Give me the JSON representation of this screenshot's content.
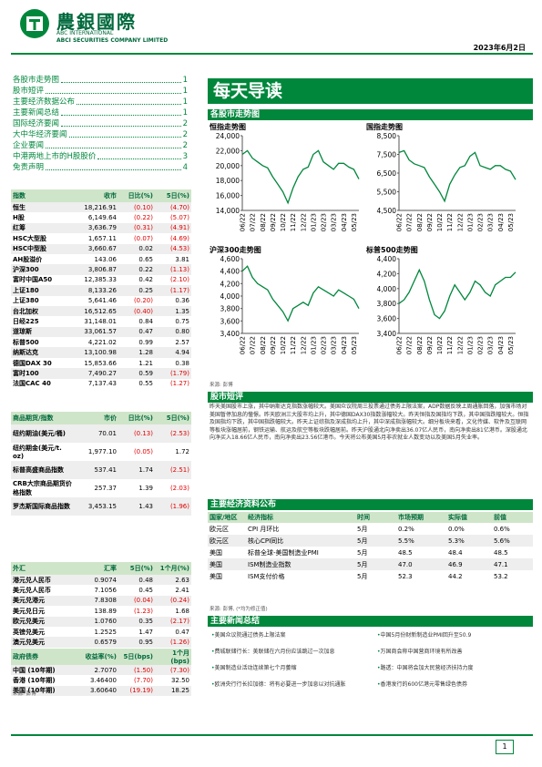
{
  "header": {
    "company_cn": "農銀國際",
    "company_en1": "ABC INTERNATIONAL",
    "company_en2": "ABCI SECURITIES COMPANY LIMITED",
    "date": "2023年6月2日"
  },
  "toc": [
    {
      "title": "各股市走势图",
      "page": "1"
    },
    {
      "title": "股市短评",
      "page": "1"
    },
    {
      "title": "主要经济数据公布",
      "page": "1"
    },
    {
      "title": "主要新闻总结",
      "page": "1"
    },
    {
      "title": "国际经济要闻",
      "page": "2"
    },
    {
      "title": "大中华经济要闻",
      "page": "2"
    },
    {
      "title": "企业要闻",
      "page": "2"
    },
    {
      "title": "中港两地上市的H股股价",
      "page": "3"
    },
    {
      "title": "免责声明",
      "page": "4"
    }
  ],
  "index_table": {
    "headers": [
      "指数",
      "收市",
      "日比(%)",
      "5日(%)"
    ],
    "rows": [
      [
        "恒生",
        "18,216.91",
        "(0.10)",
        "(4.70)"
      ],
      [
        "H股",
        "6,149.64",
        "(0.22)",
        "(5.07)"
      ],
      [
        "红筹",
        "3,636.79",
        "(0.31)",
        "(4.91)"
      ],
      [
        "HSC大型股",
        "1,657.11",
        "(0.07)",
        "(4.69)"
      ],
      [
        "HSC中型股",
        "3,660.67",
        "0.02",
        "(4.53)"
      ],
      [
        "AH股溢价",
        "143.06",
        "0.65",
        "3.81"
      ],
      [
        "沪深300",
        "3,806.87",
        "0.22",
        "(1.13)"
      ],
      [
        "富时中国A50",
        "12,385.33",
        "0.42",
        "(2.10)"
      ],
      [
        "上证180",
        "8,133.26",
        "0.25",
        "(1.17)"
      ],
      [
        "上证380",
        "5,641.46",
        "(0.20)",
        "0.36"
      ],
      [
        "台北加权",
        "16,512.65",
        "(0.40)",
        "1.35"
      ],
      [
        "日经225",
        "31,148.01",
        "0.84",
        "0.75"
      ],
      [
        "道琼斯",
        "33,061.57",
        "0.47",
        "0.80"
      ],
      [
        "标普500",
        "4,221.02",
        "0.99",
        "2.57"
      ],
      [
        "纳斯达克",
        "13,100.98",
        "1.28",
        "4.94"
      ],
      [
        "德国DAX 30",
        "15,853.66",
        "1.21",
        "0.38"
      ],
      [
        "富时100",
        "7,490.27",
        "0.59",
        "(1.79)"
      ],
      [
        "法国CAC 40",
        "7,137.43",
        "0.55",
        "(1.27)"
      ]
    ]
  },
  "commodity_table": {
    "headers": [
      "商品期货/指数",
      "市价",
      "日比(%)",
      "5日(%)"
    ],
    "rows": [
      [
        "纽约期油(美元/桶)",
        "70.01",
        "(0.13)",
        "(2.53)"
      ],
      [
        "纽约期金(美元/t. oz)",
        "1,977.10",
        "(0.05)",
        "1.72"
      ],
      [
        "标普高盛商品指数",
        "537.41",
        "1.74",
        "(2.51)"
      ],
      [
        "CRB大宗商品期货价格指数",
        "257.37",
        "1.39",
        "(2.03)"
      ],
      [
        "罗杰斯国际商品指数",
        "3,453.15",
        "1.43",
        "(1.96)"
      ]
    ]
  },
  "fx_table": {
    "headers": [
      "外汇",
      "汇率",
      "5日(%)",
      "1个月(%)"
    ],
    "rows": [
      [
        "港元兑人民币",
        "0.9074",
        "0.48",
        "2.63"
      ],
      [
        "美元兑人民币",
        "7.1056",
        "0.45",
        "2.41"
      ],
      [
        "美元兑港元",
        "7.8308",
        "(0.04)",
        "(0.24)"
      ],
      [
        "美元兑日元",
        "138.89",
        "(1.23)",
        "1.68"
      ],
      [
        "欧元兑美元",
        "1.0760",
        "0.35",
        "(2.17)"
      ],
      [
        "英镑兑美元",
        "1.2525",
        "1.47",
        "0.47"
      ],
      [
        "澳元兑美元",
        "0.6579",
        "0.95",
        "(1.26)"
      ]
    ]
  },
  "bond_table": {
    "headers": [
      "政府债券",
      "收益率(%)",
      "5日(bps)",
      "1个月(bps)"
    ],
    "rows": [
      [
        "中国 (10年期)",
        "2.7070",
        "(1.50)",
        "(7.30)"
      ],
      [
        "香港 (10年期)",
        "3.46400",
        "(7.70)",
        "32.50"
      ],
      [
        "美国 (10年期)",
        "3.60640",
        "(19.19)",
        "18.25"
      ]
    ]
  },
  "table_source": "来源: 彭博",
  "banner": "每天导读",
  "charts_heading": "各股市走势图",
  "chart_data": [
    {
      "type": "line",
      "title": "恒指走势图",
      "color": "#00873c",
      "categories": [
        "06/22",
        null,
        "07/22",
        null,
        "08/22",
        null,
        "09/22",
        null,
        "10/22",
        null,
        "11/22",
        null,
        "12/22",
        null,
        "01/23",
        null,
        "02/23",
        null,
        "03/23",
        null,
        "04/23",
        null,
        "05/23",
        null
      ],
      "values": [
        21500,
        22000,
        21000,
        20500,
        20000,
        19700,
        18500,
        17500,
        16500,
        15000,
        17000,
        18500,
        19500,
        19800,
        21500,
        22000,
        20500,
        20000,
        19500,
        20300,
        20300,
        19800,
        19500,
        18200
      ],
      "ylim": [
        14000,
        24000
      ],
      "yticks": [
        {
          "value": 14000,
          "label": "14,000"
        },
        {
          "value": 16000,
          "label": "16,000"
        },
        {
          "value": 18000,
          "label": "18,000"
        },
        {
          "value": 20000,
          "label": "20,000"
        },
        {
          "value": 22000,
          "label": "22,000"
        },
        {
          "value": 24000,
          "label": "24,000"
        }
      ]
    },
    {
      "type": "line",
      "title": "国指走势图",
      "color": "#00873c",
      "categories": [
        "06/22",
        null,
        "07/22",
        null,
        "08/22",
        null,
        "09/22",
        null,
        "10/22",
        null,
        "11/22",
        null,
        "12/22",
        null,
        "01/23",
        null,
        "02/23",
        null,
        "03/23",
        null,
        "04/23",
        null,
        "05/23",
        null
      ],
      "values": [
        7600,
        7700,
        7200,
        7000,
        6900,
        6800,
        6300,
        5900,
        5500,
        5000,
        5900,
        6400,
        6800,
        6900,
        7400,
        7600,
        6900,
        6800,
        6700,
        6900,
        6900,
        6700,
        6600,
        6150
      ],
      "ylim": [
        4500,
        8500
      ],
      "yticks": [
        {
          "value": 4500,
          "label": "4,500"
        },
        {
          "value": 5500,
          "label": "5,500"
        },
        {
          "value": 6500,
          "label": "6,500"
        },
        {
          "value": 7500,
          "label": "7,500"
        },
        {
          "value": 8500,
          "label": "8,500"
        }
      ]
    },
    {
      "type": "line",
      "title": "沪深300走势图",
      "color": "#00873c",
      "categories": [
        "06/22",
        null,
        "07/22",
        null,
        "08/22",
        null,
        "09/22",
        null,
        "10/22",
        null,
        "11/22",
        null,
        "12/22",
        null,
        "01/23",
        null,
        "02/23",
        null,
        "03/23",
        null,
        "04/23",
        null,
        "05/23",
        null
      ],
      "values": [
        4400,
        4480,
        4300,
        4200,
        4150,
        4100,
        3950,
        3850,
        3750,
        3600,
        3800,
        3850,
        3900,
        3850,
        4050,
        4150,
        4100,
        4050,
        4000,
        4100,
        4050,
        4000,
        3950,
        3800
      ],
      "ylim": [
        3400,
        4600
      ],
      "yticks": [
        {
          "value": 3400,
          "label": "3,400"
        },
        {
          "value": 3600,
          "label": "3,600"
        },
        {
          "value": 3800,
          "label": "3,800"
        },
        {
          "value": 4000,
          "label": "4,000"
        },
        {
          "value": 4200,
          "label": "4,200"
        },
        {
          "value": 4400,
          "label": "4,400"
        },
        {
          "value": 4600,
          "label": "4,600"
        }
      ]
    },
    {
      "type": "line",
      "title": "标普500走势图",
      "color": "#00873c",
      "categories": [
        "06/22",
        null,
        "07/22",
        null,
        "08/22",
        null,
        "09/22",
        null,
        "10/22",
        null,
        "11/22",
        null,
        "12/22",
        null,
        "01/23",
        null,
        "02/23",
        null,
        "03/23",
        null,
        "04/23",
        null,
        "05/23",
        null
      ],
      "values": [
        3800,
        3850,
        3950,
        4100,
        4250,
        4100,
        3850,
        3650,
        3600,
        3700,
        3900,
        4050,
        3950,
        3850,
        3950,
        4100,
        4050,
        3950,
        3900,
        4050,
        4100,
        4150,
        4150,
        4220
      ],
      "ylim": [
        3400,
        4400
      ],
      "yticks": [
        {
          "value": 3400,
          "label": "3,400"
        },
        {
          "value": 3600,
          "label": "3,600"
        },
        {
          "value": 3800,
          "label": "3,800"
        },
        {
          "value": 4000,
          "label": "4,000"
        },
        {
          "value": 4200,
          "label": "4,200"
        },
        {
          "value": 4400,
          "label": "4,400"
        }
      ]
    }
  ],
  "chart_source": "来源: 彭博",
  "commentary": {
    "heading": "股市短评",
    "text": "昨天美国股市上涨，其中纳斯达克指数涨幅较大。美国众议院周三投票通过债务上限法案，ADP数据反映上周通胀回落，加强市场对美国暂停加息的憧憬。昨天欧洲三大股市均上升，其中德国DAX30指数涨幅较大。昨天恒指及国指均下跌，其中国指跌幅较大。恒指及国指均下跌，其中国指跌幅较大。昨天上证综指及深成指均上升，其中深成指涨幅较大。细分板块来看，文化传媒、软件及互联网等板块涨幅居前，钢铁运输、航运及航空等板块跌幅居前。昨天沪股通北向净卖出36.07亿人民币，南向净卖出81亿港币。深股通北向净买入18.66亿人民币，南向净卖出23.56亿港币。今天将公布美国5月非农就业人数变动以及美国5月失业率。"
  },
  "econ": {
    "heading": "主要经济资料公布",
    "headers": [
      "国家/地区",
      "经济指标",
      "时间",
      "市场预期",
      "实际值",
      "前值"
    ],
    "rows": [
      [
        "欧元区",
        "CPI 月环比",
        "5月",
        "0.2%",
        "0.0%",
        "0.6%"
      ],
      [
        "欧元区",
        "核心CPI同比",
        "5月",
        "5.5%",
        "5.3%",
        "5.6%"
      ],
      [
        "美国",
        "标普全球-美国制造业PMI",
        "5月",
        "48.5",
        "48.4",
        "48.5"
      ],
      [
        "美国",
        "ISM制造业指数",
        "5月",
        "47.0",
        "46.9",
        "47.1"
      ],
      [
        "美国",
        "ISM支付价格",
        "5月",
        "52.3",
        "44.2",
        "53.2"
      ]
    ],
    "source": "来源: 彭博, (*均为修正值)"
  },
  "news": {
    "heading": "主要新闻总结",
    "left": [
      "美国众议院通过债务上限法案",
      "费城联储行长：美联储在六月份应该跳过一次加息",
      "美国制造业活动连续第七个月萎缩",
      "欧洲央行行长拉加德：将有必要进一步加息以对抗通胀"
    ],
    "right": [
      "中国5月份财新制造业PMI回升至50.9",
      "万国商会称中国营商环境有所改善",
      "路透：中国将会加大民营经济扶持力度",
      "香港发行的600亿港元零售绿色债券"
    ]
  },
  "page_number": "1"
}
